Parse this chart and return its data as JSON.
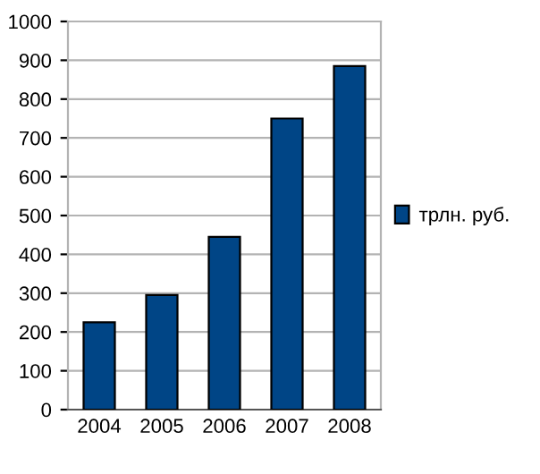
{
  "chart_data": {
    "type": "bar",
    "categories": [
      "2004",
      "2005",
      "2006",
      "2007",
      "2008"
    ],
    "series": [
      {
        "name": "трлн. руб.",
        "color": "#004586",
        "values": [
          225,
          295,
          445,
          750,
          885
        ]
      }
    ],
    "ylim": [
      0,
      1000
    ],
    "yticks": [
      0,
      100,
      200,
      300,
      400,
      500,
      600,
      700,
      800,
      900,
      1000
    ],
    "grid": "y",
    "legend": "right"
  }
}
